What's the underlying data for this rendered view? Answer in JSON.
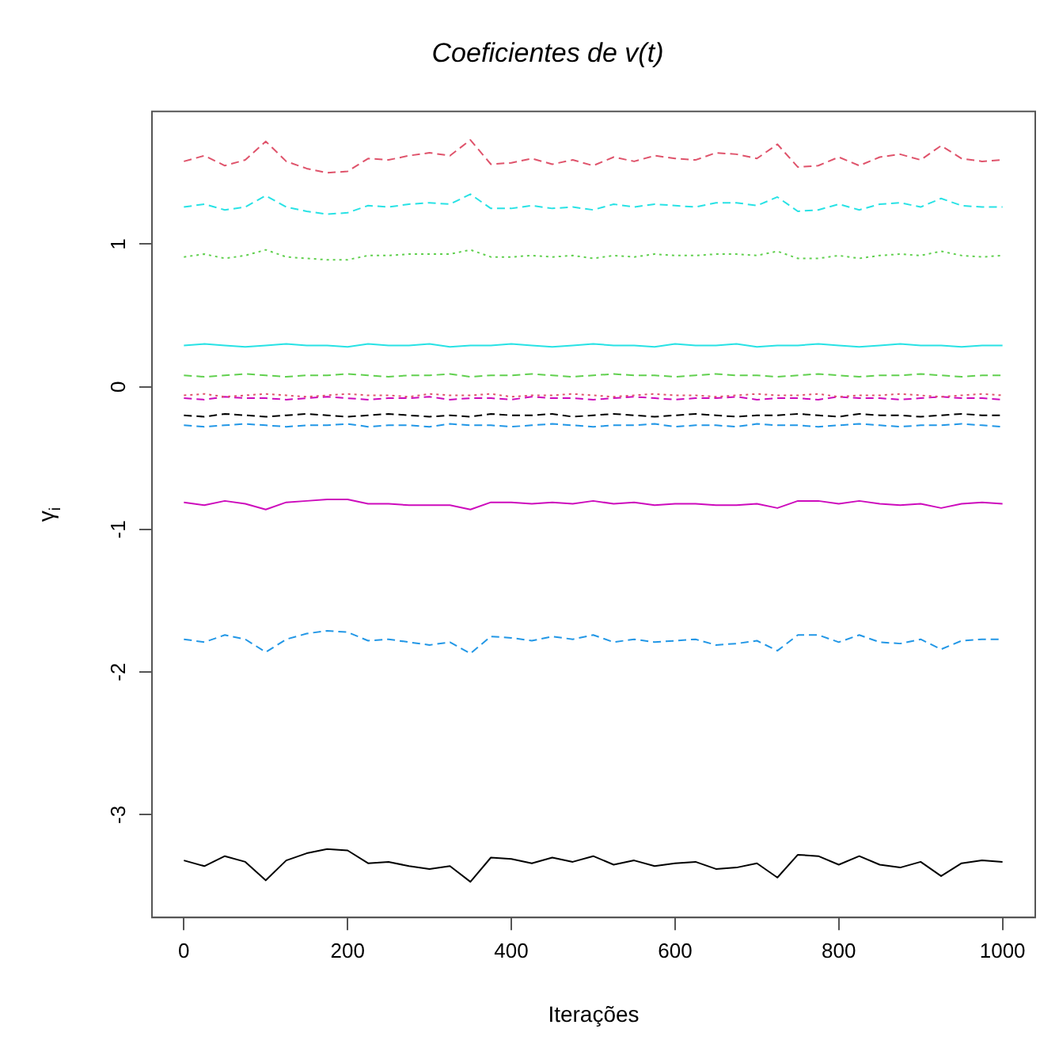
{
  "chart_data": {
    "type": "line",
    "title": "Coeficientes de v(t)",
    "xlabel": "Iterações",
    "ylabel": "γ$_{i}$",
    "x": [
      0,
      25,
      50,
      75,
      100,
      125,
      150,
      175,
      200,
      225,
      250,
      275,
      300,
      325,
      350,
      375,
      400,
      425,
      450,
      475,
      500,
      525,
      550,
      575,
      600,
      625,
      650,
      675,
      700,
      725,
      750,
      775,
      800,
      825,
      850,
      875,
      900,
      925,
      950,
      975,
      1000
    ],
    "xlim": [
      -39,
      1040
    ],
    "ylim": [
      -3.72,
      1.93
    ],
    "xticks": [
      0,
      200,
      400,
      600,
      800,
      1000
    ],
    "yticks": [
      -3,
      -2,
      -1,
      0,
      1
    ],
    "grid": false,
    "legend": false,
    "marker": "none",
    "series": [
      {
        "color": "#000000",
        "line_style": "solid",
        "values": [
          -3.32,
          -3.36,
          -3.29,
          -3.33,
          -3.46,
          -3.32,
          -3.27,
          -3.24,
          -3.25,
          -3.34,
          -3.33,
          -3.36,
          -3.38,
          -3.36,
          -3.47,
          -3.3,
          -3.31,
          -3.34,
          -3.3,
          -3.33,
          -3.29,
          -3.35,
          -3.32,
          -3.36,
          -3.34,
          -3.33,
          -3.38,
          -3.37,
          -3.34,
          -3.44,
          -3.28,
          -3.29,
          -3.35,
          -3.29,
          -3.35,
          -3.37,
          -3.33,
          -3.43,
          -3.34,
          -3.32,
          -3.33
        ]
      },
      {
        "color": "#df536b",
        "line_style": "dashed",
        "values": [
          1.58,
          1.62,
          1.55,
          1.59,
          1.72,
          1.58,
          1.53,
          1.5,
          1.51,
          1.6,
          1.59,
          1.62,
          1.64,
          1.62,
          1.73,
          1.56,
          1.57,
          1.6,
          1.56,
          1.59,
          1.55,
          1.61,
          1.58,
          1.62,
          1.6,
          1.59,
          1.64,
          1.63,
          1.6,
          1.7,
          1.54,
          1.55,
          1.61,
          1.55,
          1.61,
          1.63,
          1.59,
          1.69,
          1.6,
          1.58,
          1.59
        ]
      },
      {
        "color": "#61d04f",
        "line_style": "dotted",
        "values": [
          0.91,
          0.93,
          0.9,
          0.92,
          0.96,
          0.91,
          0.9,
          0.89,
          0.89,
          0.92,
          0.92,
          0.93,
          0.93,
          0.93,
          0.96,
          0.91,
          0.91,
          0.92,
          0.91,
          0.92,
          0.9,
          0.92,
          0.91,
          0.93,
          0.92,
          0.92,
          0.93,
          0.93,
          0.92,
          0.95,
          0.9,
          0.9,
          0.92,
          0.9,
          0.92,
          0.93,
          0.92,
          0.95,
          0.92,
          0.91,
          0.92
        ]
      },
      {
        "color": "#2297e6",
        "line_style": "dashed",
        "values": [
          -1.77,
          -1.79,
          -1.74,
          -1.77,
          -1.86,
          -1.77,
          -1.73,
          -1.71,
          -1.72,
          -1.78,
          -1.77,
          -1.79,
          -1.81,
          -1.79,
          -1.87,
          -1.75,
          -1.76,
          -1.78,
          -1.75,
          -1.77,
          -1.74,
          -1.79,
          -1.77,
          -1.79,
          -1.78,
          -1.77,
          -1.81,
          -1.8,
          -1.78,
          -1.85,
          -1.74,
          -1.74,
          -1.79,
          -1.74,
          -1.79,
          -1.8,
          -1.77,
          -1.84,
          -1.78,
          -1.77,
          -1.77
        ]
      },
      {
        "color": "#28e2e5",
        "line_style": "dashed",
        "values": [
          1.26,
          1.28,
          1.24,
          1.26,
          1.34,
          1.26,
          1.23,
          1.21,
          1.22,
          1.27,
          1.26,
          1.28,
          1.29,
          1.28,
          1.35,
          1.25,
          1.25,
          1.27,
          1.25,
          1.26,
          1.24,
          1.28,
          1.26,
          1.28,
          1.27,
          1.26,
          1.29,
          1.29,
          1.27,
          1.33,
          1.23,
          1.24,
          1.28,
          1.24,
          1.28,
          1.29,
          1.26,
          1.32,
          1.27,
          1.26,
          1.26
        ]
      },
      {
        "color": "#cd0bbc",
        "line_style": "solid",
        "values": [
          -0.81,
          -0.83,
          -0.8,
          -0.82,
          -0.86,
          -0.81,
          -0.8,
          -0.79,
          -0.79,
          -0.82,
          -0.82,
          -0.83,
          -0.83,
          -0.83,
          -0.86,
          -0.81,
          -0.81,
          -0.82,
          -0.81,
          -0.82,
          -0.8,
          -0.82,
          -0.81,
          -0.83,
          -0.82,
          -0.82,
          -0.83,
          -0.83,
          -0.82,
          -0.85,
          -0.8,
          -0.8,
          -0.82,
          -0.8,
          -0.82,
          -0.83,
          -0.82,
          -0.85,
          -0.82,
          -0.81,
          -0.82
        ]
      },
      {
        "color": "#000000",
        "line_style": "dashed",
        "values": [
          -0.2,
          -0.21,
          -0.19,
          -0.2,
          -0.21,
          -0.2,
          -0.19,
          -0.2,
          -0.21,
          -0.2,
          -0.19,
          -0.2,
          -0.21,
          -0.2,
          -0.21,
          -0.19,
          -0.2,
          -0.2,
          -0.19,
          -0.21,
          -0.2,
          -0.19,
          -0.2,
          -0.21,
          -0.2,
          -0.19,
          -0.2,
          -0.21,
          -0.2,
          -0.2,
          -0.19,
          -0.2,
          -0.21,
          -0.19,
          -0.2,
          -0.2,
          -0.21,
          -0.2,
          -0.19,
          -0.2,
          -0.2
        ]
      },
      {
        "color": "#df536b",
        "line_style": "dotted",
        "values": [
          -0.06,
          -0.05,
          -0.07,
          -0.06,
          -0.05,
          -0.06,
          -0.07,
          -0.06,
          -0.05,
          -0.06,
          -0.06,
          -0.07,
          -0.05,
          -0.06,
          -0.06,
          -0.05,
          -0.07,
          -0.06,
          -0.06,
          -0.05,
          -0.06,
          -0.07,
          -0.06,
          -0.05,
          -0.06,
          -0.06,
          -0.07,
          -0.06,
          -0.05,
          -0.06,
          -0.06,
          -0.05,
          -0.07,
          -0.06,
          -0.06,
          -0.05,
          -0.06,
          -0.07,
          -0.06,
          -0.05,
          -0.06
        ]
      },
      {
        "color": "#61d04f",
        "line_style": "dashed",
        "values": [
          0.08,
          0.07,
          0.08,
          0.09,
          0.08,
          0.07,
          0.08,
          0.08,
          0.09,
          0.08,
          0.07,
          0.08,
          0.08,
          0.09,
          0.07,
          0.08,
          0.08,
          0.09,
          0.08,
          0.07,
          0.08,
          0.09,
          0.08,
          0.08,
          0.07,
          0.08,
          0.09,
          0.08,
          0.08,
          0.07,
          0.08,
          0.09,
          0.08,
          0.07,
          0.08,
          0.08,
          0.09,
          0.08,
          0.07,
          0.08,
          0.08
        ]
      },
      {
        "color": "#2297e6",
        "line_style": "dashed",
        "values": [
          -0.27,
          -0.28,
          -0.27,
          -0.26,
          -0.27,
          -0.28,
          -0.27,
          -0.27,
          -0.26,
          -0.28,
          -0.27,
          -0.27,
          -0.28,
          -0.26,
          -0.27,
          -0.27,
          -0.28,
          -0.27,
          -0.26,
          -0.27,
          -0.28,
          -0.27,
          -0.27,
          -0.26,
          -0.28,
          -0.27,
          -0.27,
          -0.28,
          -0.26,
          -0.27,
          -0.27,
          -0.28,
          -0.27,
          -0.26,
          -0.27,
          -0.28,
          -0.27,
          -0.27,
          -0.26,
          -0.27,
          -0.28
        ]
      },
      {
        "color": "#28e2e5",
        "line_style": "solid",
        "values": [
          0.29,
          0.3,
          0.29,
          0.28,
          0.29,
          0.3,
          0.29,
          0.29,
          0.28,
          0.3,
          0.29,
          0.29,
          0.3,
          0.28,
          0.29,
          0.29,
          0.3,
          0.29,
          0.28,
          0.29,
          0.3,
          0.29,
          0.29,
          0.28,
          0.3,
          0.29,
          0.29,
          0.3,
          0.28,
          0.29,
          0.29,
          0.3,
          0.29,
          0.28,
          0.29,
          0.3,
          0.29,
          0.29,
          0.28,
          0.29,
          0.29
        ]
      },
      {
        "color": "#cd0bbc",
        "line_style": "dashed",
        "values": [
          -0.08,
          -0.09,
          -0.07,
          -0.08,
          -0.08,
          -0.09,
          -0.08,
          -0.07,
          -0.08,
          -0.09,
          -0.08,
          -0.08,
          -0.07,
          -0.09,
          -0.08,
          -0.08,
          -0.09,
          -0.07,
          -0.08,
          -0.08,
          -0.09,
          -0.08,
          -0.07,
          -0.08,
          -0.09,
          -0.08,
          -0.08,
          -0.07,
          -0.09,
          -0.08,
          -0.08,
          -0.09,
          -0.07,
          -0.08,
          -0.08,
          -0.09,
          -0.08,
          -0.07,
          -0.08,
          -0.08,
          -0.09
        ]
      }
    ]
  }
}
